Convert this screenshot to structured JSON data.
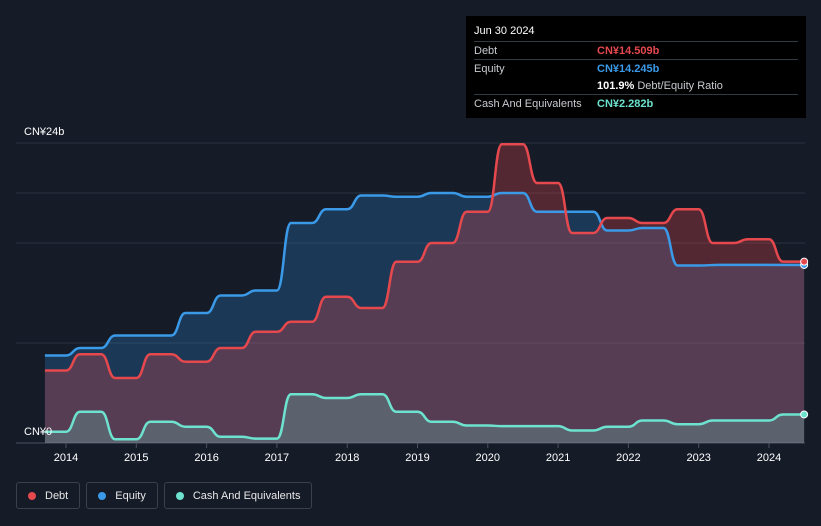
{
  "tooltip": {
    "date": "Jun 30 2024",
    "rows": [
      {
        "label": "Debt",
        "value": "CN¥14.509b",
        "color": "#e5484d"
      },
      {
        "label": "Equity",
        "value": "CN¥14.245b",
        "color": "#3a9ae8"
      },
      {
        "label": "",
        "value": "101.9%",
        "suffix": "Debt/Equity Ratio",
        "color": "#ffffff"
      },
      {
        "label": "Cash And Equivalents",
        "value": "CN¥2.282b",
        "color": "#6de3cf"
      }
    ]
  },
  "legend": [
    {
      "label": "Debt",
      "color": "#e5484d"
    },
    {
      "label": "Equity",
      "color": "#3a9ae8"
    },
    {
      "label": "Cash And Equivalents",
      "color": "#6de3cf"
    }
  ],
  "chart_data": {
    "type": "area",
    "title": "",
    "xlabel": "",
    "ylabel": "",
    "y_top_label": "CN¥24b",
    "y_bottom_label": "CN¥0",
    "ylim": [
      0,
      24
    ],
    "xlim": [
      2013.7,
      2024.5
    ],
    "x_ticks": [
      2014,
      2015,
      2016,
      2017,
      2018,
      2019,
      2020,
      2021,
      2022,
      2023,
      2024
    ],
    "series": [
      {
        "name": "Equity",
        "color": "#3a9ae8",
        "points": [
          [
            2013.7,
            7.0
          ],
          [
            2014.0,
            7.0
          ],
          [
            2014.2,
            7.6
          ],
          [
            2014.5,
            7.6
          ],
          [
            2014.7,
            8.6
          ],
          [
            2015.2,
            8.6
          ],
          [
            2015.5,
            8.6
          ],
          [
            2015.7,
            10.4
          ],
          [
            2016.0,
            10.4
          ],
          [
            2016.2,
            11.8
          ],
          [
            2016.5,
            11.8
          ],
          [
            2016.7,
            12.2
          ],
          [
            2017.0,
            12.2
          ],
          [
            2017.2,
            17.6
          ],
          [
            2017.5,
            17.6
          ],
          [
            2017.7,
            18.7
          ],
          [
            2018.0,
            18.7
          ],
          [
            2018.2,
            19.8
          ],
          [
            2018.5,
            19.8
          ],
          [
            2018.7,
            19.7
          ],
          [
            2019.0,
            19.7
          ],
          [
            2019.2,
            20.0
          ],
          [
            2019.5,
            20.0
          ],
          [
            2019.7,
            19.7
          ],
          [
            2020.0,
            19.7
          ],
          [
            2020.2,
            20.0
          ],
          [
            2020.5,
            20.0
          ],
          [
            2020.7,
            18.5
          ],
          [
            2021.0,
            18.5
          ],
          [
            2021.2,
            18.5
          ],
          [
            2021.5,
            18.5
          ],
          [
            2021.7,
            17.0
          ],
          [
            2022.0,
            17.0
          ],
          [
            2022.2,
            17.2
          ],
          [
            2022.5,
            17.2
          ],
          [
            2022.7,
            14.2
          ],
          [
            2023.0,
            14.2
          ],
          [
            2023.3,
            14.25
          ],
          [
            2024.5,
            14.245
          ]
        ]
      },
      {
        "name": "Debt",
        "color": "#e5484d",
        "points": [
          [
            2013.7,
            5.8
          ],
          [
            2014.0,
            5.8
          ],
          [
            2014.2,
            7.1
          ],
          [
            2014.5,
            7.1
          ],
          [
            2014.7,
            5.2
          ],
          [
            2015.0,
            5.2
          ],
          [
            2015.2,
            7.1
          ],
          [
            2015.5,
            7.1
          ],
          [
            2015.7,
            6.5
          ],
          [
            2016.0,
            6.5
          ],
          [
            2016.2,
            7.6
          ],
          [
            2016.5,
            7.6
          ],
          [
            2016.7,
            8.9
          ],
          [
            2017.0,
            8.9
          ],
          [
            2017.2,
            9.7
          ],
          [
            2017.5,
            9.7
          ],
          [
            2017.7,
            11.7
          ],
          [
            2018.0,
            11.7
          ],
          [
            2018.2,
            10.8
          ],
          [
            2018.5,
            10.8
          ],
          [
            2018.7,
            14.5
          ],
          [
            2019.0,
            14.5
          ],
          [
            2019.2,
            16.0
          ],
          [
            2019.5,
            16.0
          ],
          [
            2019.7,
            18.5
          ],
          [
            2020.0,
            18.5
          ],
          [
            2020.2,
            23.9
          ],
          [
            2020.5,
            23.9
          ],
          [
            2020.7,
            20.8
          ],
          [
            2021.0,
            20.8
          ],
          [
            2021.2,
            16.8
          ],
          [
            2021.5,
            16.8
          ],
          [
            2021.7,
            18.0
          ],
          [
            2022.0,
            18.0
          ],
          [
            2022.2,
            17.6
          ],
          [
            2022.5,
            17.6
          ],
          [
            2022.7,
            18.7
          ],
          [
            2023.0,
            18.7
          ],
          [
            2023.2,
            16.0
          ],
          [
            2023.5,
            16.0
          ],
          [
            2023.7,
            16.3
          ],
          [
            2024.0,
            16.3
          ],
          [
            2024.2,
            14.509
          ],
          [
            2024.5,
            14.509
          ]
        ]
      },
      {
        "name": "Cash And Equivalents",
        "color": "#6de3cf",
        "points": [
          [
            2013.7,
            0.9
          ],
          [
            2014.0,
            0.9
          ],
          [
            2014.2,
            2.5
          ],
          [
            2014.5,
            2.5
          ],
          [
            2014.7,
            0.3
          ],
          [
            2015.0,
            0.3
          ],
          [
            2015.2,
            1.7
          ],
          [
            2015.5,
            1.7
          ],
          [
            2015.7,
            1.3
          ],
          [
            2016.0,
            1.3
          ],
          [
            2016.2,
            0.5
          ],
          [
            2016.5,
            0.5
          ],
          [
            2016.7,
            0.35
          ],
          [
            2017.0,
            0.35
          ],
          [
            2017.2,
            3.9
          ],
          [
            2017.5,
            3.9
          ],
          [
            2017.7,
            3.6
          ],
          [
            2018.0,
            3.6
          ],
          [
            2018.2,
            3.9
          ],
          [
            2018.5,
            3.9
          ],
          [
            2018.7,
            2.5
          ],
          [
            2019.0,
            2.5
          ],
          [
            2019.2,
            1.7
          ],
          [
            2019.5,
            1.7
          ],
          [
            2019.7,
            1.4
          ],
          [
            2020.0,
            1.4
          ],
          [
            2020.2,
            1.35
          ],
          [
            2021.0,
            1.35
          ],
          [
            2021.2,
            1.0
          ],
          [
            2021.5,
            1.0
          ],
          [
            2021.7,
            1.3
          ],
          [
            2022.0,
            1.3
          ],
          [
            2022.2,
            1.8
          ],
          [
            2022.5,
            1.8
          ],
          [
            2022.7,
            1.5
          ],
          [
            2023.0,
            1.5
          ],
          [
            2023.2,
            1.8
          ],
          [
            2023.5,
            1.8
          ],
          [
            2024.0,
            1.8
          ],
          [
            2024.2,
            2.282
          ],
          [
            2024.5,
            2.282
          ]
        ]
      }
    ]
  }
}
